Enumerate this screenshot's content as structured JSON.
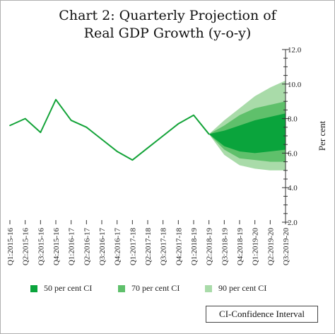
{
  "chart_data": {
    "type": "line",
    "title_line1": "Chart 2: Quarterly Projection of",
    "title_line2": "Real GDP Growth (y-o-y)",
    "ylabel": "Per cent",
    "ylim": [
      2.0,
      12.0
    ],
    "y_ticks": [
      "2.0",
      "4.0",
      "6.0",
      "8.0",
      "10.0",
      "12.0"
    ],
    "categories": [
      "Q1:2015-16",
      "Q2:2015-16",
      "Q3:2015-16",
      "Q4:2015-16",
      "Q1:2016-17",
      "Q2:2016-17",
      "Q3:2016-17",
      "Q4:2016-17",
      "Q1:2017-18",
      "Q2:2017-18",
      "Q3:2017-18",
      "Q4:2017-18",
      "Q1:2018-19",
      "Q2:2018-19",
      "Q3:2018-19",
      "Q4:2018-19",
      "Q1:2019-20",
      "Q2:2019-20",
      "Q3:2019-20"
    ],
    "actual": {
      "start_index": 0,
      "values": [
        7.6,
        8.0,
        7.2,
        9.1,
        7.9,
        7.5,
        6.8,
        6.1,
        5.6,
        6.3,
        7.0,
        7.7,
        8.2,
        7.1
      ]
    },
    "bands": {
      "start_index": 13,
      "ci90": {
        "upper": [
          7.1,
          7.9,
          8.6,
          9.3,
          9.8,
          10.2
        ],
        "lower": [
          7.1,
          5.9,
          5.3,
          5.1,
          5.0,
          5.0
        ]
      },
      "ci70": {
        "upper": [
          7.1,
          7.6,
          8.2,
          8.6,
          8.8,
          9.0
        ],
        "lower": [
          7.1,
          6.2,
          5.7,
          5.6,
          5.5,
          5.5
        ]
      },
      "ci50": {
        "upper": [
          7.1,
          7.3,
          7.6,
          7.9,
          8.1,
          8.3
        ],
        "lower": [
          7.1,
          6.4,
          6.1,
          6.0,
          6.1,
          6.2
        ]
      }
    },
    "legend": [
      {
        "label": "50 per cent CI",
        "color": "#0aa43c"
      },
      {
        "label": "70 per cent CI",
        "color": "#5fc06b"
      },
      {
        "label": "90 per cent CI",
        "color": "#a9dba9"
      }
    ],
    "line_color": "#13a338",
    "note": "CI-Confidence Interval"
  }
}
